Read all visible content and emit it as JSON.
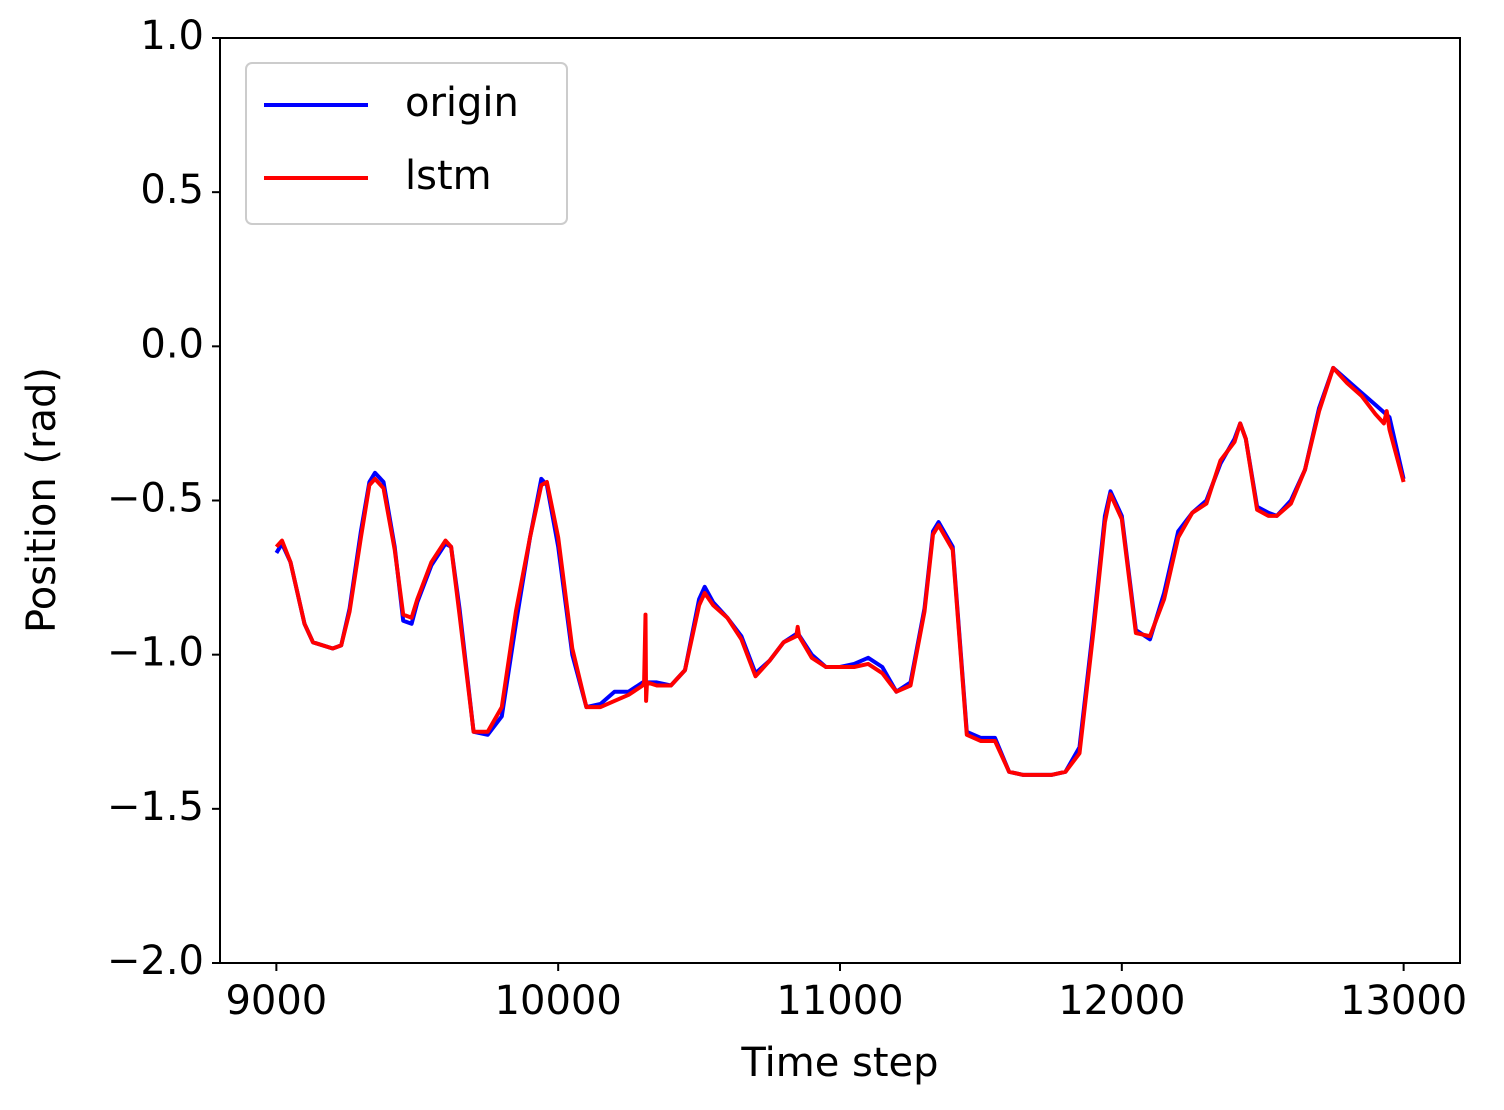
{
  "chart_data": {
    "type": "line",
    "x_label": "Time step",
    "y_label": "Position (rad)",
    "xlim": [
      8800,
      13200
    ],
    "ylim": [
      -2.0,
      1.0
    ],
    "xticks": [
      9000,
      10000,
      11000,
      12000,
      13000
    ],
    "yticks": [
      {
        "value": 1.0,
        "label": "1.0"
      },
      {
        "value": 0.5,
        "label": "0.5"
      },
      {
        "value": 0.0,
        "label": "0.0"
      },
      {
        "value": -0.5,
        "label": "−0.5"
      },
      {
        "value": -1.0,
        "label": "−1.0"
      },
      {
        "value": -1.5,
        "label": "−1.5"
      },
      {
        "value": -2.0,
        "label": "−2.0"
      }
    ],
    "legend": "upper left",
    "series": [
      {
        "name": "origin",
        "color": "#0000ff",
        "x": [
          9000,
          9020,
          9050,
          9100,
          9130,
          9200,
          9230,
          9260,
          9300,
          9330,
          9350,
          9380,
          9420,
          9450,
          9480,
          9500,
          9550,
          9600,
          9620,
          9650,
          9700,
          9750,
          9800,
          9850,
          9900,
          9940,
          9960,
          10000,
          10050,
          10100,
          10150,
          10200,
          10250,
          10300,
          10350,
          10400,
          10450,
          10500,
          10520,
          10550,
          10600,
          10650,
          10700,
          10750,
          10800,
          10850,
          10900,
          10950,
          11000,
          11050,
          11100,
          11150,
          11200,
          11250,
          11300,
          11330,
          11350,
          11400,
          11450,
          11500,
          11550,
          11600,
          11650,
          11700,
          11750,
          11800,
          11850,
          11900,
          11940,
          11960,
          12000,
          12050,
          12100,
          12150,
          12200,
          12250,
          12300,
          12350,
          12400,
          12420,
          12440,
          12480,
          12520,
          12550,
          12600,
          12650,
          12700,
          12750,
          12800,
          12850,
          12900,
          12950,
          13000
        ],
        "values": [
          -0.67,
          -0.64,
          -0.7,
          -0.9,
          -0.96,
          -0.98,
          -0.97,
          -0.85,
          -0.6,
          -0.44,
          -0.41,
          -0.44,
          -0.65,
          -0.89,
          -0.9,
          -0.83,
          -0.71,
          -0.64,
          -0.65,
          -0.85,
          -1.25,
          -1.26,
          -1.2,
          -0.9,
          -0.62,
          -0.43,
          -0.45,
          -0.65,
          -1.0,
          -1.17,
          -1.16,
          -1.12,
          -1.12,
          -1.09,
          -1.09,
          -1.1,
          -1.05,
          -0.82,
          -0.78,
          -0.83,
          -0.88,
          -0.94,
          -1.06,
          -1.02,
          -0.96,
          -0.93,
          -1.0,
          -1.04,
          -1.04,
          -1.03,
          -1.01,
          -1.04,
          -1.12,
          -1.09,
          -0.85,
          -0.6,
          -0.57,
          -0.65,
          -1.25,
          -1.27,
          -1.27,
          -1.38,
          -1.39,
          -1.39,
          -1.39,
          -1.38,
          -1.3,
          -0.9,
          -0.55,
          -0.47,
          -0.55,
          -0.92,
          -0.95,
          -0.8,
          -0.6,
          -0.54,
          -0.5,
          -0.38,
          -0.3,
          -0.25,
          -0.3,
          -0.52,
          -0.54,
          -0.55,
          -0.5,
          -0.4,
          -0.2,
          -0.07,
          -0.11,
          -0.15,
          -0.19,
          -0.23,
          -0.43
        ]
      },
      {
        "name": "lstm",
        "color": "#ff0000",
        "x": [
          9000,
          9020,
          9050,
          9100,
          9130,
          9200,
          9230,
          9260,
          9300,
          9330,
          9350,
          9380,
          9420,
          9450,
          9480,
          9500,
          9550,
          9600,
          9620,
          9650,
          9700,
          9750,
          9800,
          9850,
          9900,
          9940,
          9960,
          10000,
          10050,
          10100,
          10150,
          10200,
          10250,
          10300,
          10305,
          10310,
          10312,
          10315,
          10350,
          10400,
          10450,
          10500,
          10520,
          10550,
          10600,
          10650,
          10700,
          10750,
          10800,
          10845,
          10850,
          10855,
          10900,
          10950,
          11000,
          11050,
          11100,
          11150,
          11200,
          11250,
          11300,
          11330,
          11350,
          11400,
          11450,
          11500,
          11550,
          11600,
          11650,
          11700,
          11750,
          11800,
          11850,
          11900,
          11940,
          11960,
          12000,
          12050,
          12100,
          12150,
          12200,
          12250,
          12300,
          12350,
          12400,
          12420,
          12440,
          12480,
          12520,
          12550,
          12600,
          12650,
          12700,
          12750,
          12800,
          12850,
          12900,
          12930,
          12940,
          12950,
          13000
        ],
        "values": [
          -0.65,
          -0.63,
          -0.7,
          -0.9,
          -0.96,
          -0.98,
          -0.97,
          -0.86,
          -0.62,
          -0.45,
          -0.43,
          -0.46,
          -0.66,
          -0.87,
          -0.88,
          -0.82,
          -0.7,
          -0.63,
          -0.65,
          -0.87,
          -1.25,
          -1.25,
          -1.17,
          -0.86,
          -0.62,
          -0.45,
          -0.44,
          -0.62,
          -0.98,
          -1.17,
          -1.17,
          -1.15,
          -1.13,
          -1.1,
          -1.09,
          -0.87,
          -1.15,
          -1.09,
          -1.1,
          -1.1,
          -1.05,
          -0.84,
          -0.8,
          -0.84,
          -0.88,
          -0.95,
          -1.07,
          -1.02,
          -0.96,
          -0.94,
          -0.91,
          -0.94,
          -1.01,
          -1.04,
          -1.04,
          -1.04,
          -1.03,
          -1.06,
          -1.12,
          -1.1,
          -0.86,
          -0.61,
          -0.58,
          -0.66,
          -1.26,
          -1.28,
          -1.28,
          -1.38,
          -1.39,
          -1.39,
          -1.39,
          -1.38,
          -1.32,
          -0.92,
          -0.57,
          -0.48,
          -0.56,
          -0.93,
          -0.94,
          -0.82,
          -0.62,
          -0.54,
          -0.51,
          -0.37,
          -0.31,
          -0.25,
          -0.3,
          -0.53,
          -0.55,
          -0.55,
          -0.51,
          -0.4,
          -0.21,
          -0.07,
          -0.12,
          -0.16,
          -0.22,
          -0.25,
          -0.21,
          -0.27,
          -0.44
        ]
      }
    ]
  }
}
